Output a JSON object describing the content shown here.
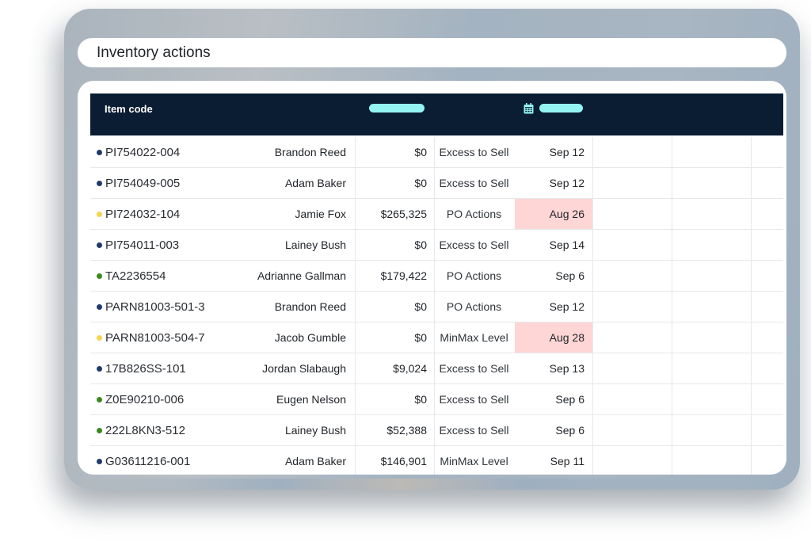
{
  "header": {
    "title": "Inventory actions"
  },
  "table": {
    "columns": {
      "item_code": "Item code"
    },
    "rows": [
      {
        "status_color": "#1e3a6e",
        "code": "PI754022-004",
        "owner": "Brandon Reed",
        "amount": "$0",
        "action": "Excess to Sell",
        "date": "Sep 12",
        "date_flag": false
      },
      {
        "status_color": "#1e3a6e",
        "code": "PI754049-005",
        "owner": "Adam Baker",
        "amount": "$0",
        "action": "Excess to Sell",
        "date": "Sep 12",
        "date_flag": false
      },
      {
        "status_color": "#f5d54a",
        "code": "PI724032-104",
        "owner": "Jamie Fox",
        "amount": "$265,325",
        "action": "PO Actions",
        "date": "Aug 26",
        "date_flag": true
      },
      {
        "status_color": "#1e3a6e",
        "code": "PI754011-003",
        "owner": "Lainey Bush",
        "amount": "$0",
        "action": "Excess to Sell",
        "date": "Sep 14",
        "date_flag": false
      },
      {
        "status_color": "#3a8a1e",
        "code": "TA2236554",
        "owner": "Adrianne Gallman",
        "amount": "$179,422",
        "action": "PO Actions",
        "date": "Sep 6",
        "date_flag": false
      },
      {
        "status_color": "#1e3a6e",
        "code": "PARN81003-501-3",
        "owner": "Brandon Reed",
        "amount": "$0",
        "action": "PO Actions",
        "date": "Sep 12",
        "date_flag": false
      },
      {
        "status_color": "#f5d54a",
        "code": "PARN81003-504-7",
        "owner": "Jacob Gumble",
        "amount": "$0",
        "action": "MinMax Level",
        "date": "Aug 28",
        "date_flag": true
      },
      {
        "status_color": "#1e3a6e",
        "code": "17B826SS-101",
        "owner": "Jordan Slabaugh",
        "amount": "$9,024",
        "action": "Excess to Sell",
        "date": "Sep 13",
        "date_flag": false
      },
      {
        "status_color": "#3a8a1e",
        "code": "Z0E90210-006",
        "owner": "Eugen Nelson",
        "amount": "$0",
        "action": "Excess to Sell",
        "date": "Sep 6",
        "date_flag": false
      },
      {
        "status_color": "#3a8a1e",
        "code": "222L8KN3-512",
        "owner": "Lainey Bush",
        "amount": "$52,388",
        "action": "Excess to Sell",
        "date": "Sep 6",
        "date_flag": false
      },
      {
        "status_color": "#1e3a6e",
        "code": "G03611216-001",
        "owner": "Adam Baker",
        "amount": "$146,901",
        "action": "MinMax Level",
        "date": "Sep 11",
        "date_flag": false
      }
    ]
  },
  "icons": {
    "date_column": "calendar-icon"
  },
  "colors": {
    "header_bg": "#0b1d33",
    "header_pill": "#93f4f1",
    "flag_bg": "#ffd6d6"
  }
}
